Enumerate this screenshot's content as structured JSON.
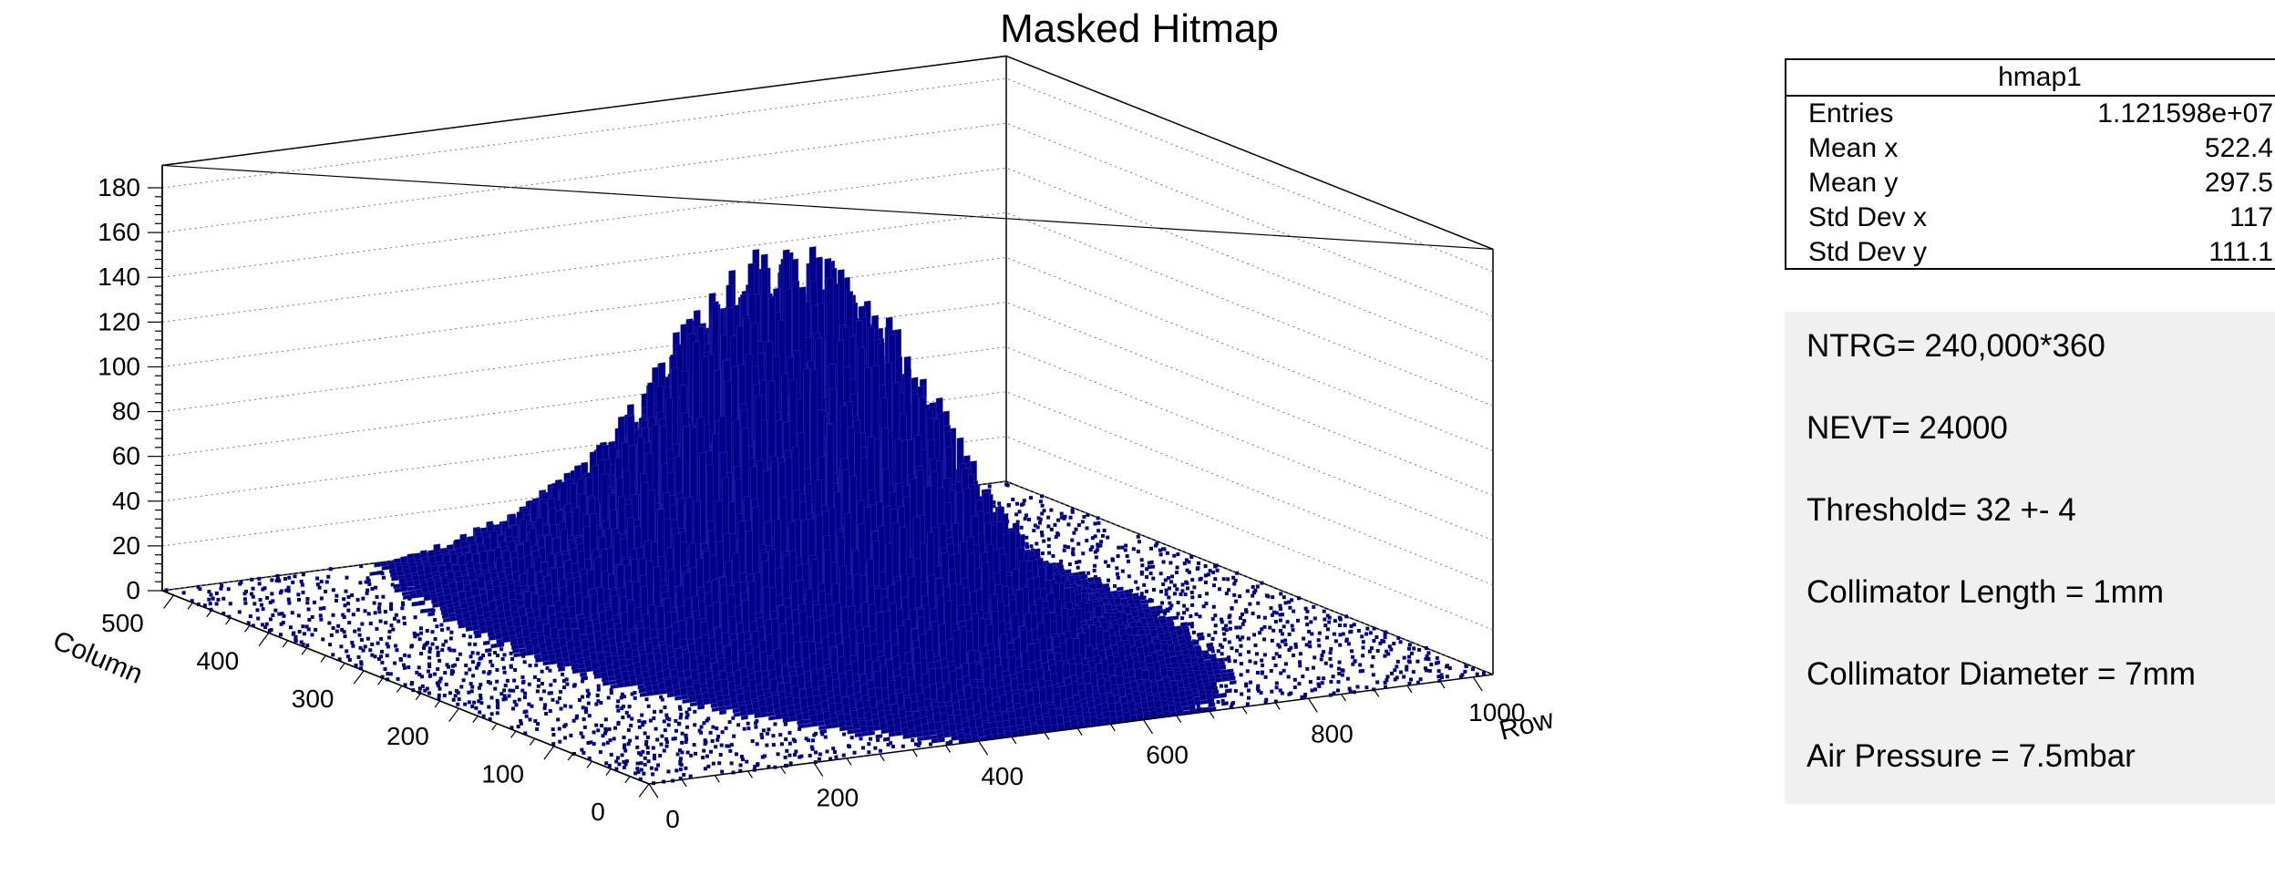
{
  "chart_data": {
    "type": "lego3d",
    "title": "Masked Hitmap",
    "xlabel": "Row",
    "ylabel": "Column",
    "zlabel": "",
    "xlim": [
      0,
      1024
    ],
    "ylim": [
      0,
      512
    ],
    "zlim": [
      0,
      190
    ],
    "x_ticks": [
      0,
      200,
      400,
      600,
      800,
      1000
    ],
    "y_ticks": [
      0,
      100,
      200,
      300,
      400,
      500
    ],
    "z_ticks": [
      0,
      20,
      40,
      60,
      80,
      100,
      120,
      140,
      160,
      180
    ],
    "bar_color": "#00008b",
    "grid": true,
    "distribution": {
      "shape": "2D gaussian",
      "peak_counts": 170,
      "center_row": 522.4,
      "center_column": 297.5,
      "stddev_row": 117,
      "stddev_column": 111.1
    }
  },
  "stats_box": {
    "title": "hmap1",
    "rows": [
      {
        "label": "Entries",
        "value": "1.121598e+07"
      },
      {
        "label": "Mean x",
        "value": "522.4"
      },
      {
        "label": "Mean y",
        "value": "297.5"
      },
      {
        "label": "Std Dev x",
        "value": "117"
      },
      {
        "label": "Std Dev y",
        "value": "111.1"
      }
    ]
  },
  "notes": [
    "NTRG= 240,000*360",
    "NEVT= 24000",
    "Threshold= 32 +- 4",
    "Collimator Length = 1mm",
    "Collimator Diameter = 7mm",
    "Air Pressure = 7.5mbar"
  ]
}
